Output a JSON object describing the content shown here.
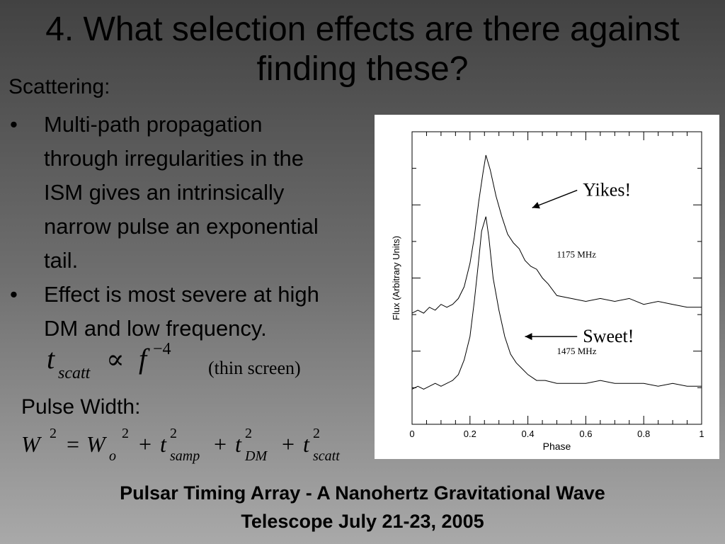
{
  "title": "4. What selection effects are there against finding these?",
  "scattering_label": "Scattering:",
  "bullets": [
    "Multi-path propagation\nthrough irregularities in the\nISM gives an intrinsically\nnarrow pulse an exponential\ntail.",
    "Effect is most severe at high\nDM and low frequency."
  ],
  "bullet_char": "•",
  "eq1": {
    "lhs": "t",
    "lhs_sub": "scatt",
    "prop": "∝",
    "rhs": "f",
    "rhs_sup": "−4",
    "note": "(thin screen)"
  },
  "pulse_width_label": "Pulse Width:",
  "eq2": {
    "lhs": "W",
    "lhs_sup": "2",
    "equals": "=",
    "w0": "W",
    "w0_sub": "o",
    "w0_sup": "2",
    "plus": "+",
    "t": "t",
    "sq": "2",
    "samp": "samp",
    "dm": "DM",
    "scatt": "scatt"
  },
  "footer": "Pulsar Timing Array - A Nanohertz Gravitational Wave\nTelescope July 21-23, 2005",
  "chart_data": {
    "type": "line",
    "xlabel": "Phase",
    "ylabel": "Flux (Arbitrary Units)",
    "xlim": [
      0,
      1
    ],
    "ylim": [
      0,
      1
    ],
    "x_ticks": [
      0,
      0.2,
      0.4,
      0.6,
      0.8,
      1
    ],
    "x_tick_labels": [
      "0",
      "0.2",
      "0.4",
      "0.6",
      "0.8",
      "1"
    ],
    "series": [
      {
        "name": "1175 MHz",
        "x": [
          0,
          0.02,
          0.04,
          0.06,
          0.08,
          0.1,
          0.12,
          0.14,
          0.16,
          0.18,
          0.2,
          0.215,
          0.23,
          0.245,
          0.255,
          0.27,
          0.29,
          0.31,
          0.33,
          0.35,
          0.37,
          0.39,
          0.41,
          0.43,
          0.45,
          0.47,
          0.5,
          0.55,
          0.6,
          0.65,
          0.7,
          0.75,
          0.8,
          0.85,
          0.9,
          0.95,
          1
        ],
        "y": [
          0.38,
          0.39,
          0.38,
          0.4,
          0.39,
          0.41,
          0.4,
          0.41,
          0.43,
          0.47,
          0.55,
          0.64,
          0.76,
          0.86,
          0.92,
          0.87,
          0.78,
          0.71,
          0.65,
          0.62,
          0.6,
          0.56,
          0.54,
          0.53,
          0.5,
          0.48,
          0.44,
          0.43,
          0.42,
          0.43,
          0.42,
          0.43,
          0.41,
          0.42,
          0.41,
          0.4,
          0.4
        ]
      },
      {
        "name": "1475 MHz",
        "x": [
          0,
          0.02,
          0.04,
          0.06,
          0.08,
          0.1,
          0.12,
          0.14,
          0.16,
          0.18,
          0.2,
          0.215,
          0.23,
          0.24,
          0.255,
          0.265,
          0.28,
          0.3,
          0.32,
          0.34,
          0.36,
          0.38,
          0.4,
          0.43,
          0.46,
          0.5,
          0.55,
          0.6,
          0.65,
          0.7,
          0.75,
          0.8,
          0.85,
          0.9,
          0.95,
          1
        ],
        "y": [
          0.12,
          0.13,
          0.12,
          0.13,
          0.14,
          0.13,
          0.14,
          0.15,
          0.17,
          0.22,
          0.3,
          0.42,
          0.56,
          0.66,
          0.71,
          0.64,
          0.5,
          0.39,
          0.3,
          0.24,
          0.21,
          0.19,
          0.17,
          0.15,
          0.15,
          0.14,
          0.14,
          0.14,
          0.15,
          0.14,
          0.14,
          0.14,
          0.13,
          0.14,
          0.13,
          0.13
        ]
      }
    ],
    "annotations": [
      {
        "text": "1175 MHz",
        "x": 0.5,
        "y": 0.57
      },
      {
        "text": "1475 MHz",
        "x": 0.5,
        "y": 0.24
      },
      {
        "text": "Yikes!",
        "x": 0.58,
        "y": 0.8,
        "target_x": 0.415,
        "target_y": 0.74
      },
      {
        "text": "Sweet!",
        "x": 0.58,
        "y": 0.3,
        "target_x": 0.39,
        "target_y": 0.3
      }
    ]
  }
}
